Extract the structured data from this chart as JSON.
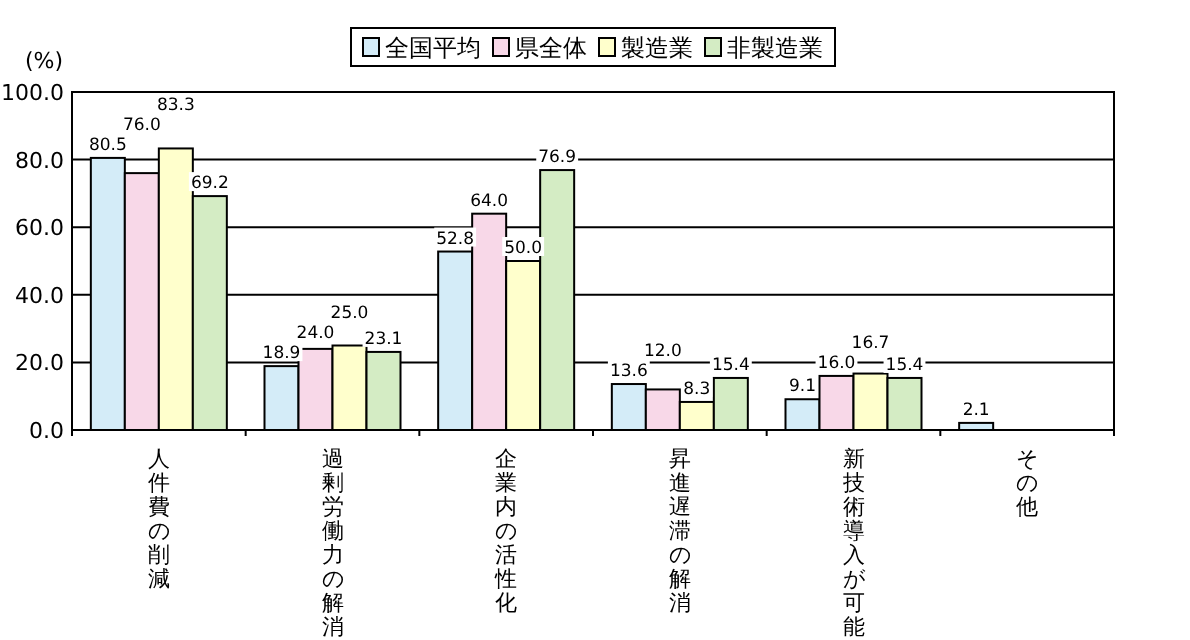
{
  "chart_data": {
    "type": "bar",
    "ylabel": "(%)",
    "categories": [
      "人件費の削減",
      "過剰労働力の解消",
      "企業内の活性化",
      "昇進遅滞の解消",
      "新技術導入が可能",
      "その他"
    ],
    "series": [
      {
        "name": "全国平均",
        "color": "#d4ecf8",
        "values": [
          80.5,
          18.9,
          52.8,
          13.6,
          9.1,
          2.1
        ],
        "value_labels": [
          "80.5",
          "18.9",
          "52.8",
          "13.6",
          "9.1",
          "2.1"
        ]
      },
      {
        "name": "県全体",
        "color": "#f8d8e8",
        "values": [
          76.0,
          24.0,
          64.0,
          12.0,
          16.0,
          null
        ],
        "value_labels": [
          "76.0",
          "24.0",
          "64.0",
          "12.0",
          "16.0",
          null
        ]
      },
      {
        "name": "製造業",
        "color": "#ffffcc",
        "values": [
          83.3,
          25.0,
          50.0,
          8.3,
          16.7,
          null
        ],
        "value_labels": [
          "83.3",
          "25.0",
          "50.0",
          "8.3",
          "16.7",
          null
        ]
      },
      {
        "name": "非製造業",
        "color": "#d4ecc4",
        "values": [
          69.2,
          23.1,
          76.9,
          15.4,
          15.4,
          null
        ],
        "value_labels": [
          "69.2",
          "23.1",
          "76.9",
          "15.4",
          "15.4",
          null
        ]
      }
    ],
    "ylim": [
      0,
      100
    ],
    "yticks": [
      {
        "value": 0,
        "label": "0.0"
      },
      {
        "value": 20,
        "label": "20.0"
      },
      {
        "value": 40,
        "label": "40.0"
      },
      {
        "value": 60,
        "label": "60.0"
      },
      {
        "value": 80,
        "label": "80.0"
      },
      {
        "value": 100,
        "label": "100.0"
      }
    ],
    "grid": "y",
    "legend": "top"
  }
}
